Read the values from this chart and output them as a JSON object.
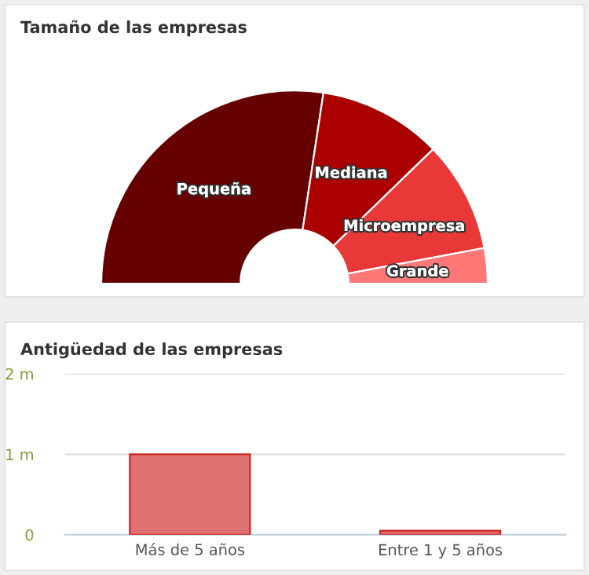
{
  "chart_data": [
    {
      "type": "donut",
      "title": "Tamaño de las empresas",
      "categories": [
        "Pequeña",
        "Mediana",
        "Microempresa",
        "Grande"
      ],
      "values": [
        54.8,
        20.7,
        18.6,
        5.9
      ],
      "colors": [
        "#660000",
        "#aa0000",
        "#e83838",
        "#ff7777"
      ]
    },
    {
      "type": "bar",
      "title": "Antigüedad de las empresas",
      "categories": [
        "Más de 5 años",
        "Entre 1 y 5 años"
      ],
      "values": [
        1.0,
        0.05
      ],
      "color": "#e07272",
      "ylim": [
        0,
        2
      ],
      "yticks": [
        0,
        {
          "value": 1,
          "label": "1 m"
        },
        {
          "value": 2,
          "label": "2 m"
        }
      ],
      "grid": "y"
    }
  ]
}
